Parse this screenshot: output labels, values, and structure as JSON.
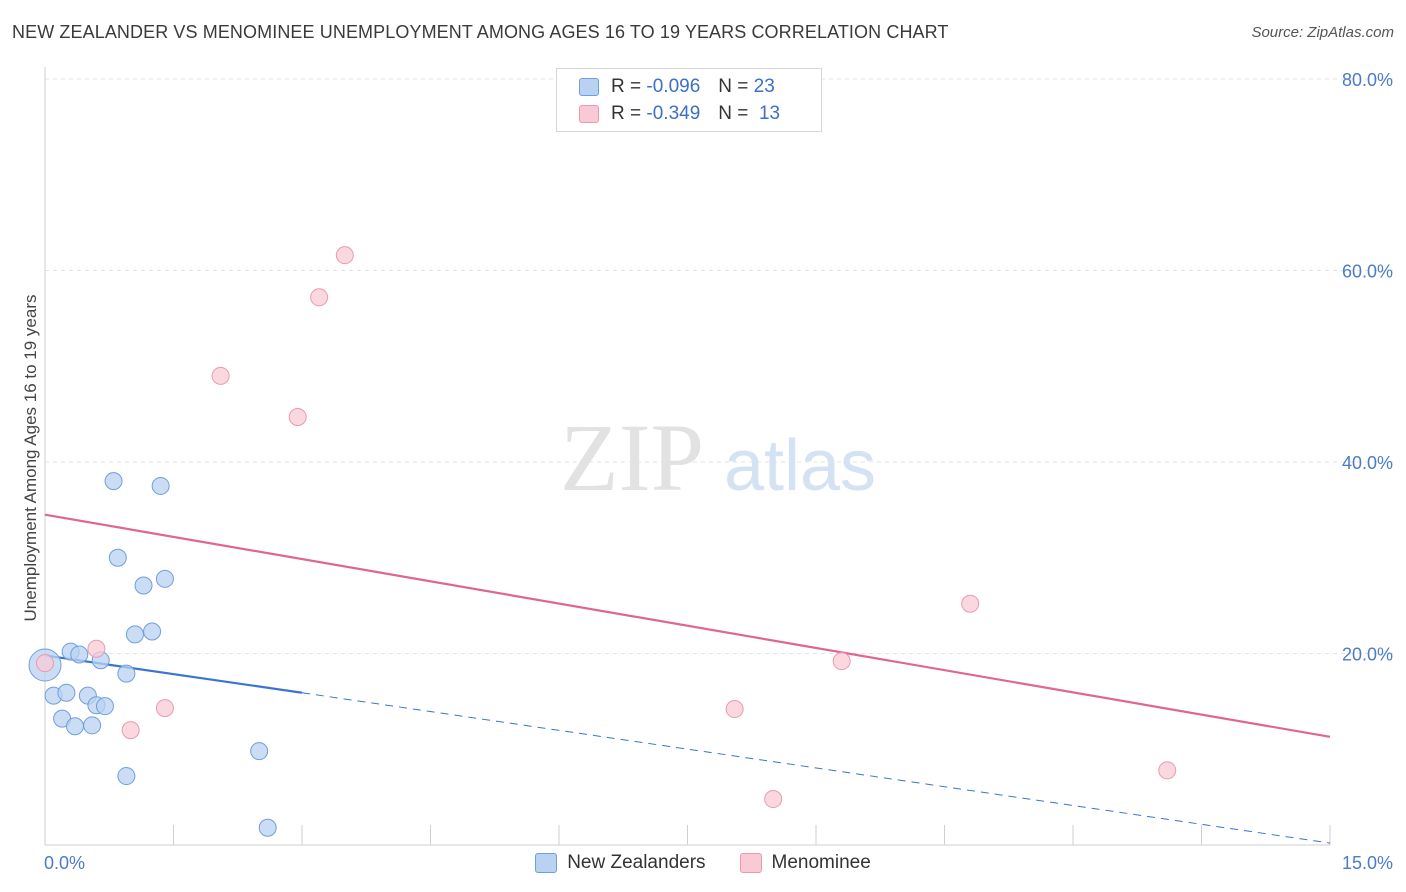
{
  "title": "NEW ZEALANDER VS MENOMINEE UNEMPLOYMENT AMONG AGES 16 TO 19 YEARS CORRELATION CHART",
  "source": "Source: ZipAtlas.com",
  "watermark": {
    "zip": "ZIP",
    "atlas": "atlas"
  },
  "legend": [
    {
      "r_label": "R = ",
      "r_value": "-0.096",
      "n_label": "N = ",
      "n_value": "23"
    },
    {
      "r_label": "R = ",
      "r_value": "-0.349",
      "n_label": "N = ",
      "n_value": "13"
    }
  ],
  "colors": {
    "blue_fill": "#b9d2f2",
    "blue_stroke": "#6f9fdc",
    "blue_line": "#3b74d1",
    "pink_fill": "#f9c9d6",
    "pink_stroke": "#e99ab1",
    "pink_line": "#e06690",
    "grid": "#e3e3e3",
    "tick_text": "#4a7cc9"
  },
  "chart_data": {
    "type": "scatter",
    "title": "NEW ZEALANDER VS MENOMINEE UNEMPLOYMENT AMONG AGES 16 TO 19 YEARS CORRELATION CHART",
    "xlabel": "",
    "ylabel": "Unemployment Among Ages 16 to 19 years",
    "xlim": [
      0,
      15
    ],
    "ylim": [
      0,
      80
    ],
    "x_tick_labels": [
      "0.0%",
      "15.0%"
    ],
    "y_ticks": [
      20,
      40,
      60,
      80
    ],
    "y_tick_labels": [
      "20.0%",
      "40.0%",
      "60.0%",
      "80.0%"
    ],
    "grid": true,
    "legend_position": "bottom",
    "series": [
      {
        "name": "New Zealanders",
        "color": "#b9d2f2",
        "points": [
          [
            0.0,
            18.8
          ],
          [
            0.1,
            15.6
          ],
          [
            0.2,
            13.2
          ],
          [
            0.25,
            15.9
          ],
          [
            0.3,
            20.2
          ],
          [
            0.35,
            12.4
          ],
          [
            0.4,
            19.9
          ],
          [
            0.5,
            15.6
          ],
          [
            0.55,
            12.5
          ],
          [
            0.6,
            14.6
          ],
          [
            0.65,
            19.3
          ],
          [
            0.7,
            14.5
          ],
          [
            0.8,
            38.0
          ],
          [
            0.85,
            30.0
          ],
          [
            0.95,
            17.9
          ],
          [
            0.95,
            7.2
          ],
          [
            1.05,
            22.0
          ],
          [
            1.15,
            27.1
          ],
          [
            1.25,
            22.3
          ],
          [
            1.35,
            37.5
          ],
          [
            1.4,
            27.8
          ],
          [
            2.5,
            9.8
          ],
          [
            2.6,
            1.8
          ]
        ],
        "trend": {
          "x": [
            0.0,
            3.0
          ],
          "y": [
            19.8,
            15.9
          ]
        },
        "trend_extension": {
          "x": [
            3.0,
            15.0
          ],
          "y": [
            15.9,
            0.2
          ]
        }
      },
      {
        "name": "Menominee",
        "color": "#f9c9d6",
        "points": [
          [
            0.0,
            19.0
          ],
          [
            0.6,
            20.5
          ],
          [
            1.0,
            12.0
          ],
          [
            1.4,
            14.3
          ],
          [
            2.05,
            49.0
          ],
          [
            2.95,
            44.7
          ],
          [
            3.2,
            57.2
          ],
          [
            3.5,
            61.6
          ],
          [
            8.05,
            14.2
          ],
          [
            8.5,
            4.8
          ],
          [
            9.3,
            19.2
          ],
          [
            10.8,
            25.2
          ],
          [
            13.1,
            7.8
          ]
        ],
        "trend": {
          "x": [
            0.0,
            15.0
          ],
          "y": [
            34.5,
            11.3
          ]
        }
      }
    ]
  },
  "bottom_legend": [
    {
      "label": "New Zealanders"
    },
    {
      "label": "Menominee"
    }
  ]
}
